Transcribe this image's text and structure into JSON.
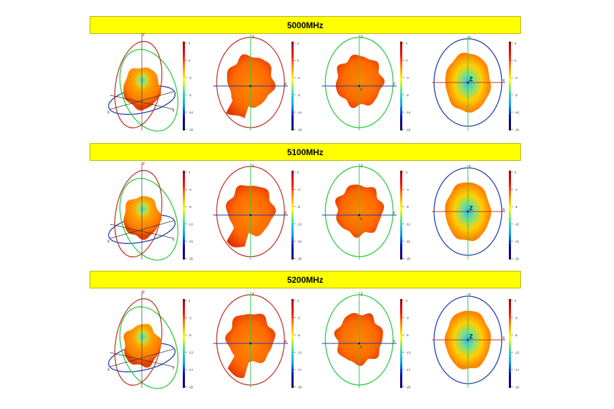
{
  "rows": [
    {
      "freq": "5000MHz",
      "ticks": [
        "4",
        "0",
        "-4",
        "-9",
        "-14",
        "-18"
      ]
    },
    {
      "freq": "5100MHz",
      "ticks": [
        "2",
        "-4",
        "-9",
        "-12",
        "-21",
        "-25"
      ]
    },
    {
      "freq": "5200MHz",
      "ticks": [
        "2",
        "-3",
        "-6",
        "-13",
        "-17",
        "-29"
      ]
    }
  ],
  "axis_labels": {
    "x": "X",
    "y": "Y",
    "z": "Z"
  },
  "colormap": [
    "#8b0000",
    "#ff0000",
    "#ff8c00",
    "#ffff00",
    "#40e0a0",
    "#00a0ff",
    "#0000b0",
    "#000050"
  ],
  "circle_colors": {
    "red": "#c0392b",
    "green": "#2ecc40",
    "blue": "#1f3fa8"
  }
}
